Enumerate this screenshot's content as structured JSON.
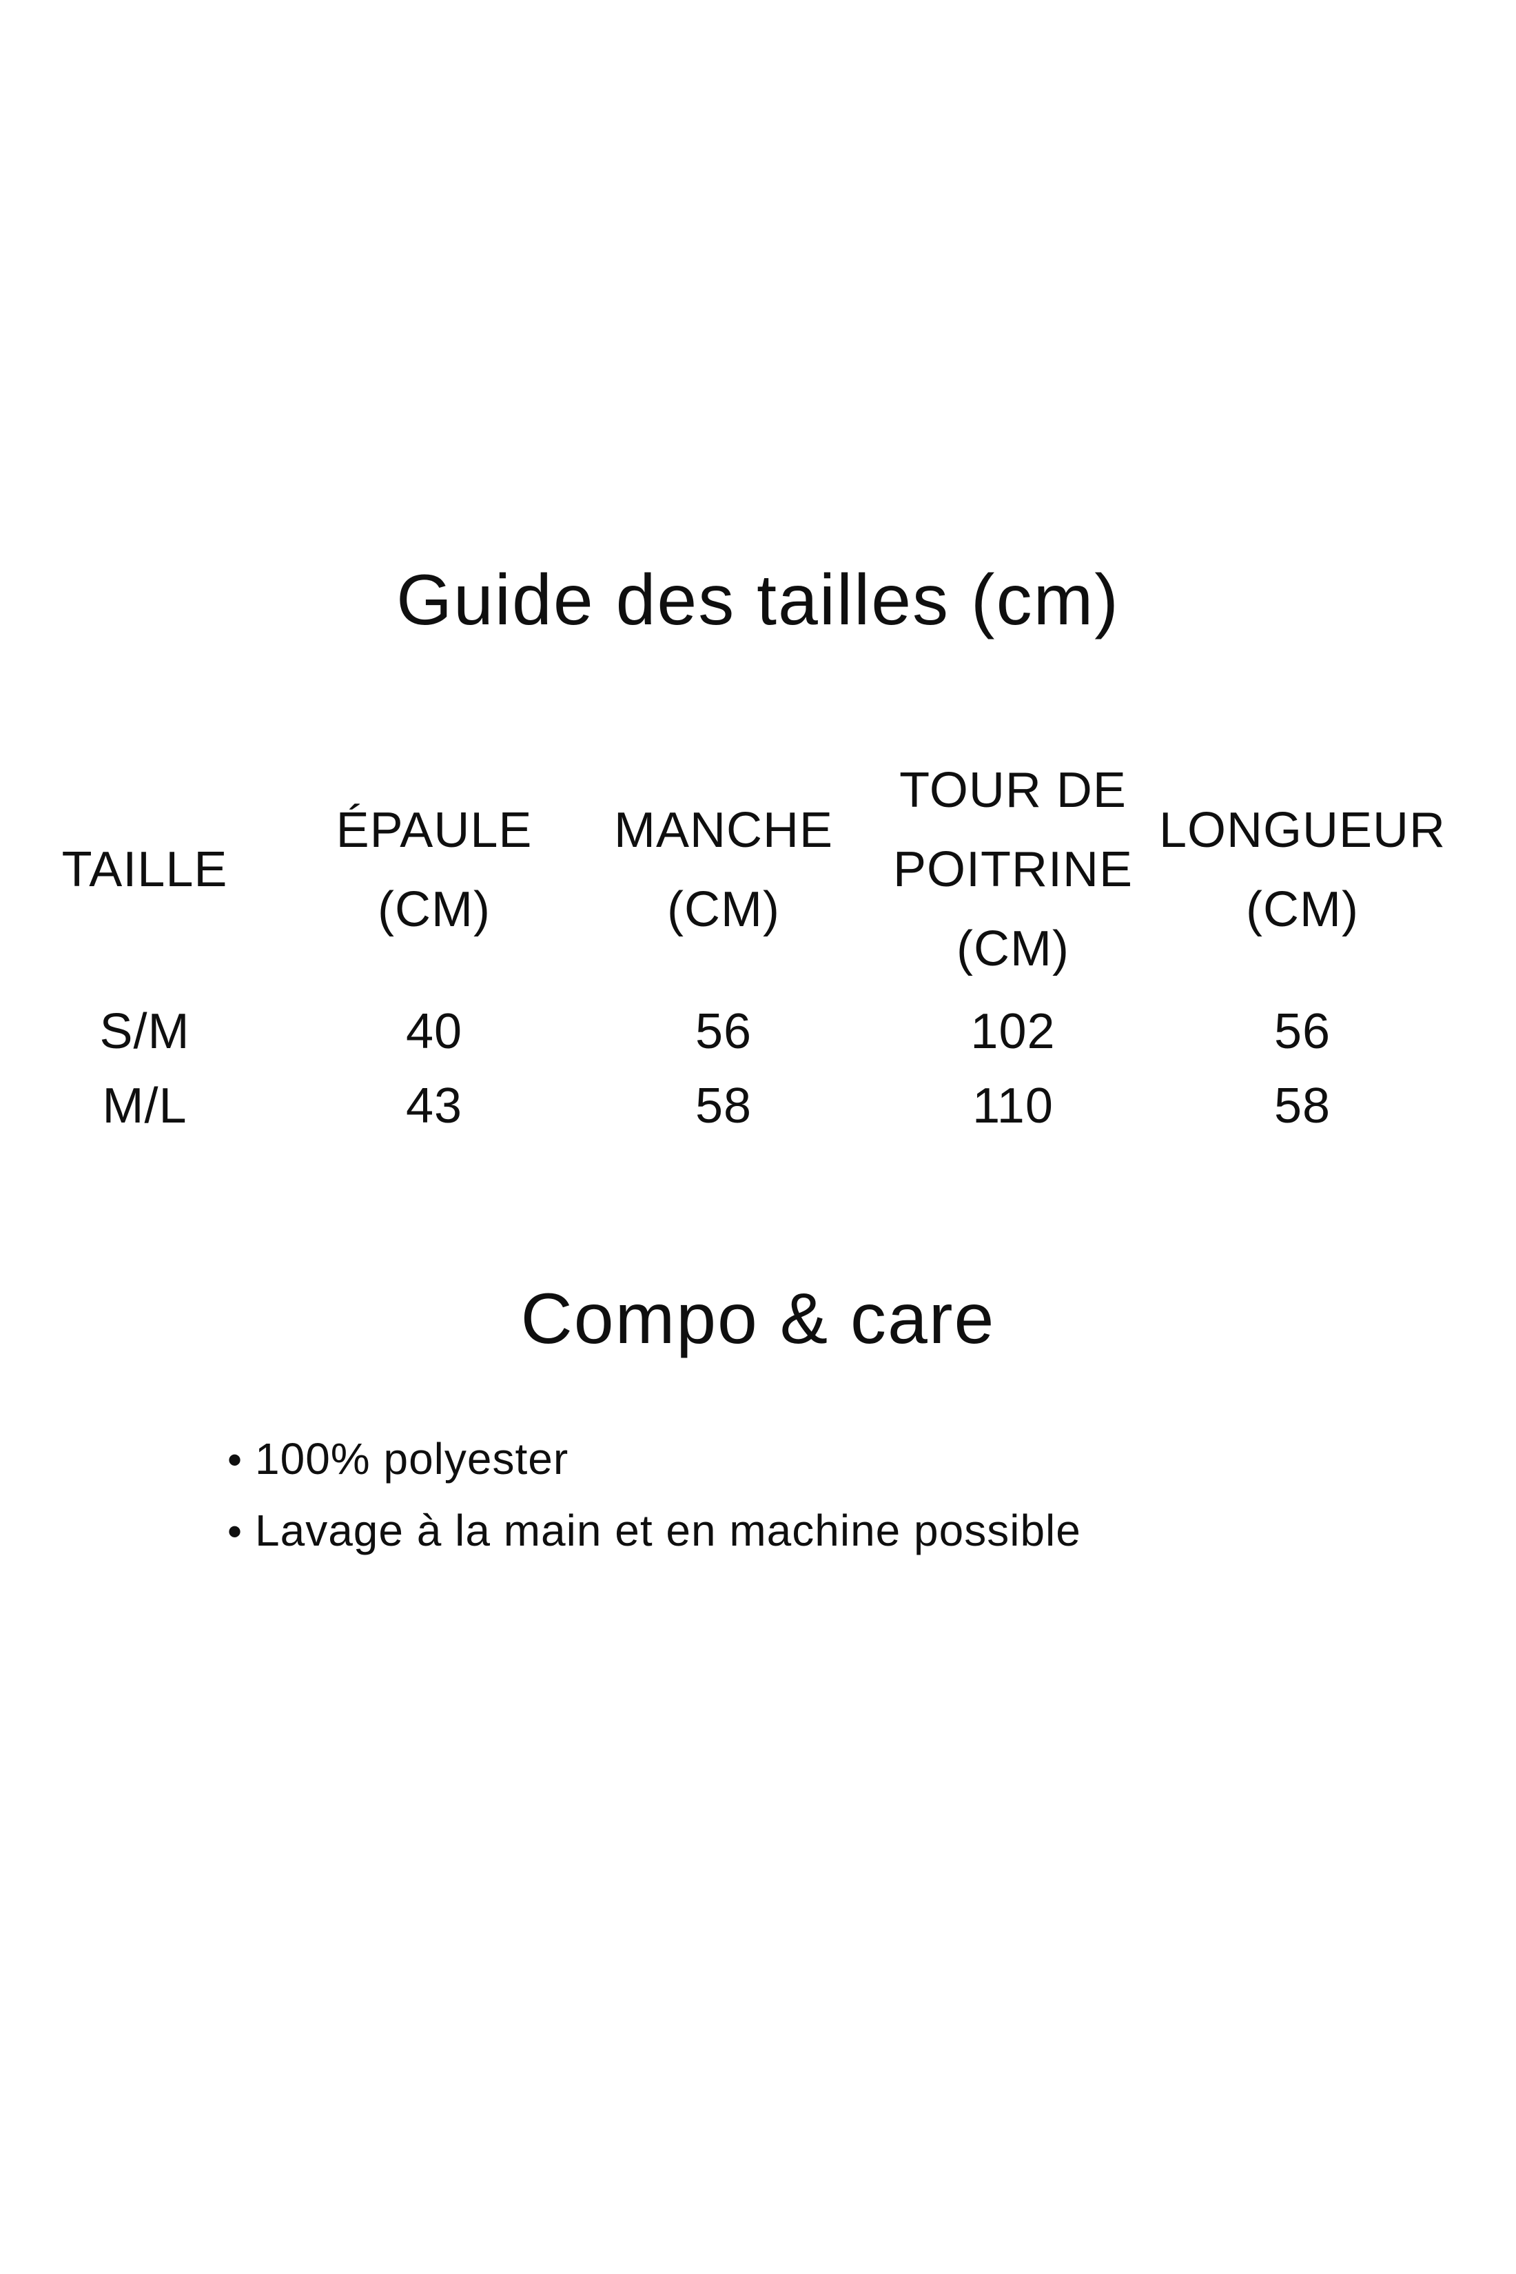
{
  "page": {
    "background_color": "#ffffff",
    "text_color": "#0f0f0f"
  },
  "size_guide": {
    "title": "Guide des tailles (cm)",
    "table": {
      "columns": [
        {
          "label_lines": [
            "TAILLE"
          ]
        },
        {
          "label_lines": [
            "ÉPAULE",
            "(CM)"
          ]
        },
        {
          "label_lines": [
            "MANCHE",
            "(CM)"
          ]
        },
        {
          "label_lines": [
            "TOUR DE",
            "POITRINE",
            "(CM)"
          ]
        },
        {
          "label_lines": [
            "LONGUEUR",
            "(CM)"
          ]
        }
      ],
      "rows": [
        {
          "cells": [
            "S/M",
            "40",
            "56",
            "102",
            "56"
          ]
        },
        {
          "cells": [
            "M/L",
            "43",
            "58",
            "110",
            "58"
          ]
        }
      ]
    }
  },
  "compo_care": {
    "title": "Compo & care",
    "bullet_char": "•",
    "items": [
      "100% polyester",
      "Lavage à la main et en machine possible"
    ]
  }
}
